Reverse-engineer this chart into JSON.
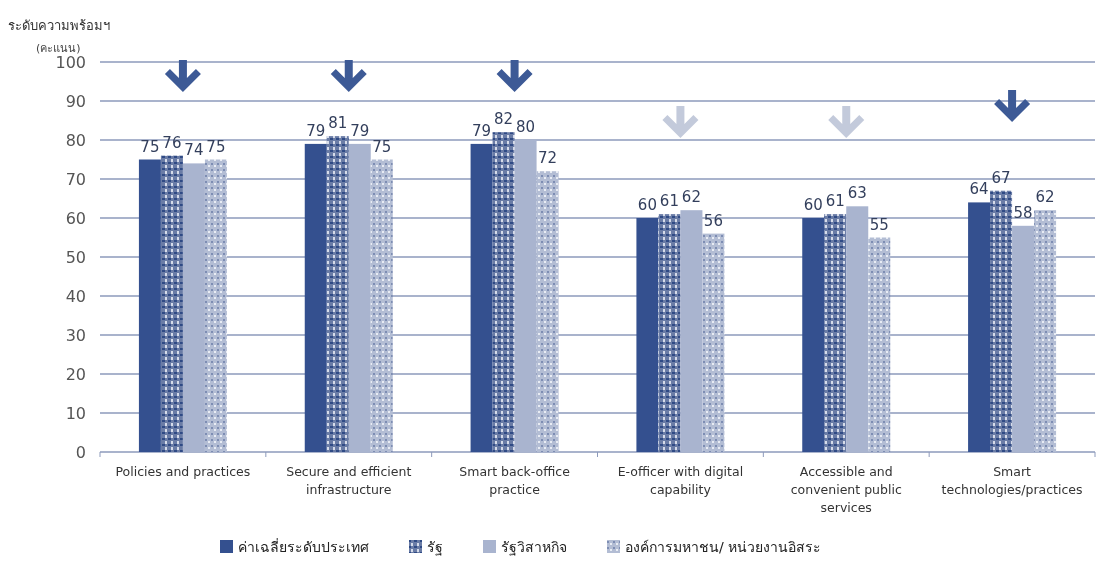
{
  "chart_data": {
    "type": "bar",
    "title": "ระดับความพร้อมฯ",
    "ylabel": "(คะแนน)",
    "categories": [
      "Policies and practices",
      "Secure and efficient infrastructure",
      "Smart back-office practice",
      "E-officer with digital capability",
      "Accessible and convenient public services",
      "Smart technologies/practices"
    ],
    "series": [
      {
        "name": "ค่าเฉลี่ยระดับประเทศ",
        "color": "#34508f",
        "values": [
          75,
          79,
          79,
          60,
          60,
          64
        ]
      },
      {
        "name": "รัฐ",
        "color": "#6a7ca6",
        "values": [
          76,
          81,
          82,
          61,
          61,
          67
        ]
      },
      {
        "name": "รัฐวิสาหกิจ",
        "color": "#a9b4cf",
        "values": [
          74,
          79,
          80,
          62,
          63,
          58
        ]
      },
      {
        "name": "องค์การมหาชน/ หน่วยงานอิสระ",
        "color": "#b3bdd4",
        "values": [
          75,
          75,
          72,
          56,
          55,
          62
        ]
      }
    ],
    "ylim": [
      0,
      100
    ],
    "yticks": [
      0,
      10,
      20,
      30,
      40,
      50,
      60,
      70,
      80,
      90,
      100
    ],
    "grid": "y",
    "legend": "bottom",
    "data_labels": true
  }
}
